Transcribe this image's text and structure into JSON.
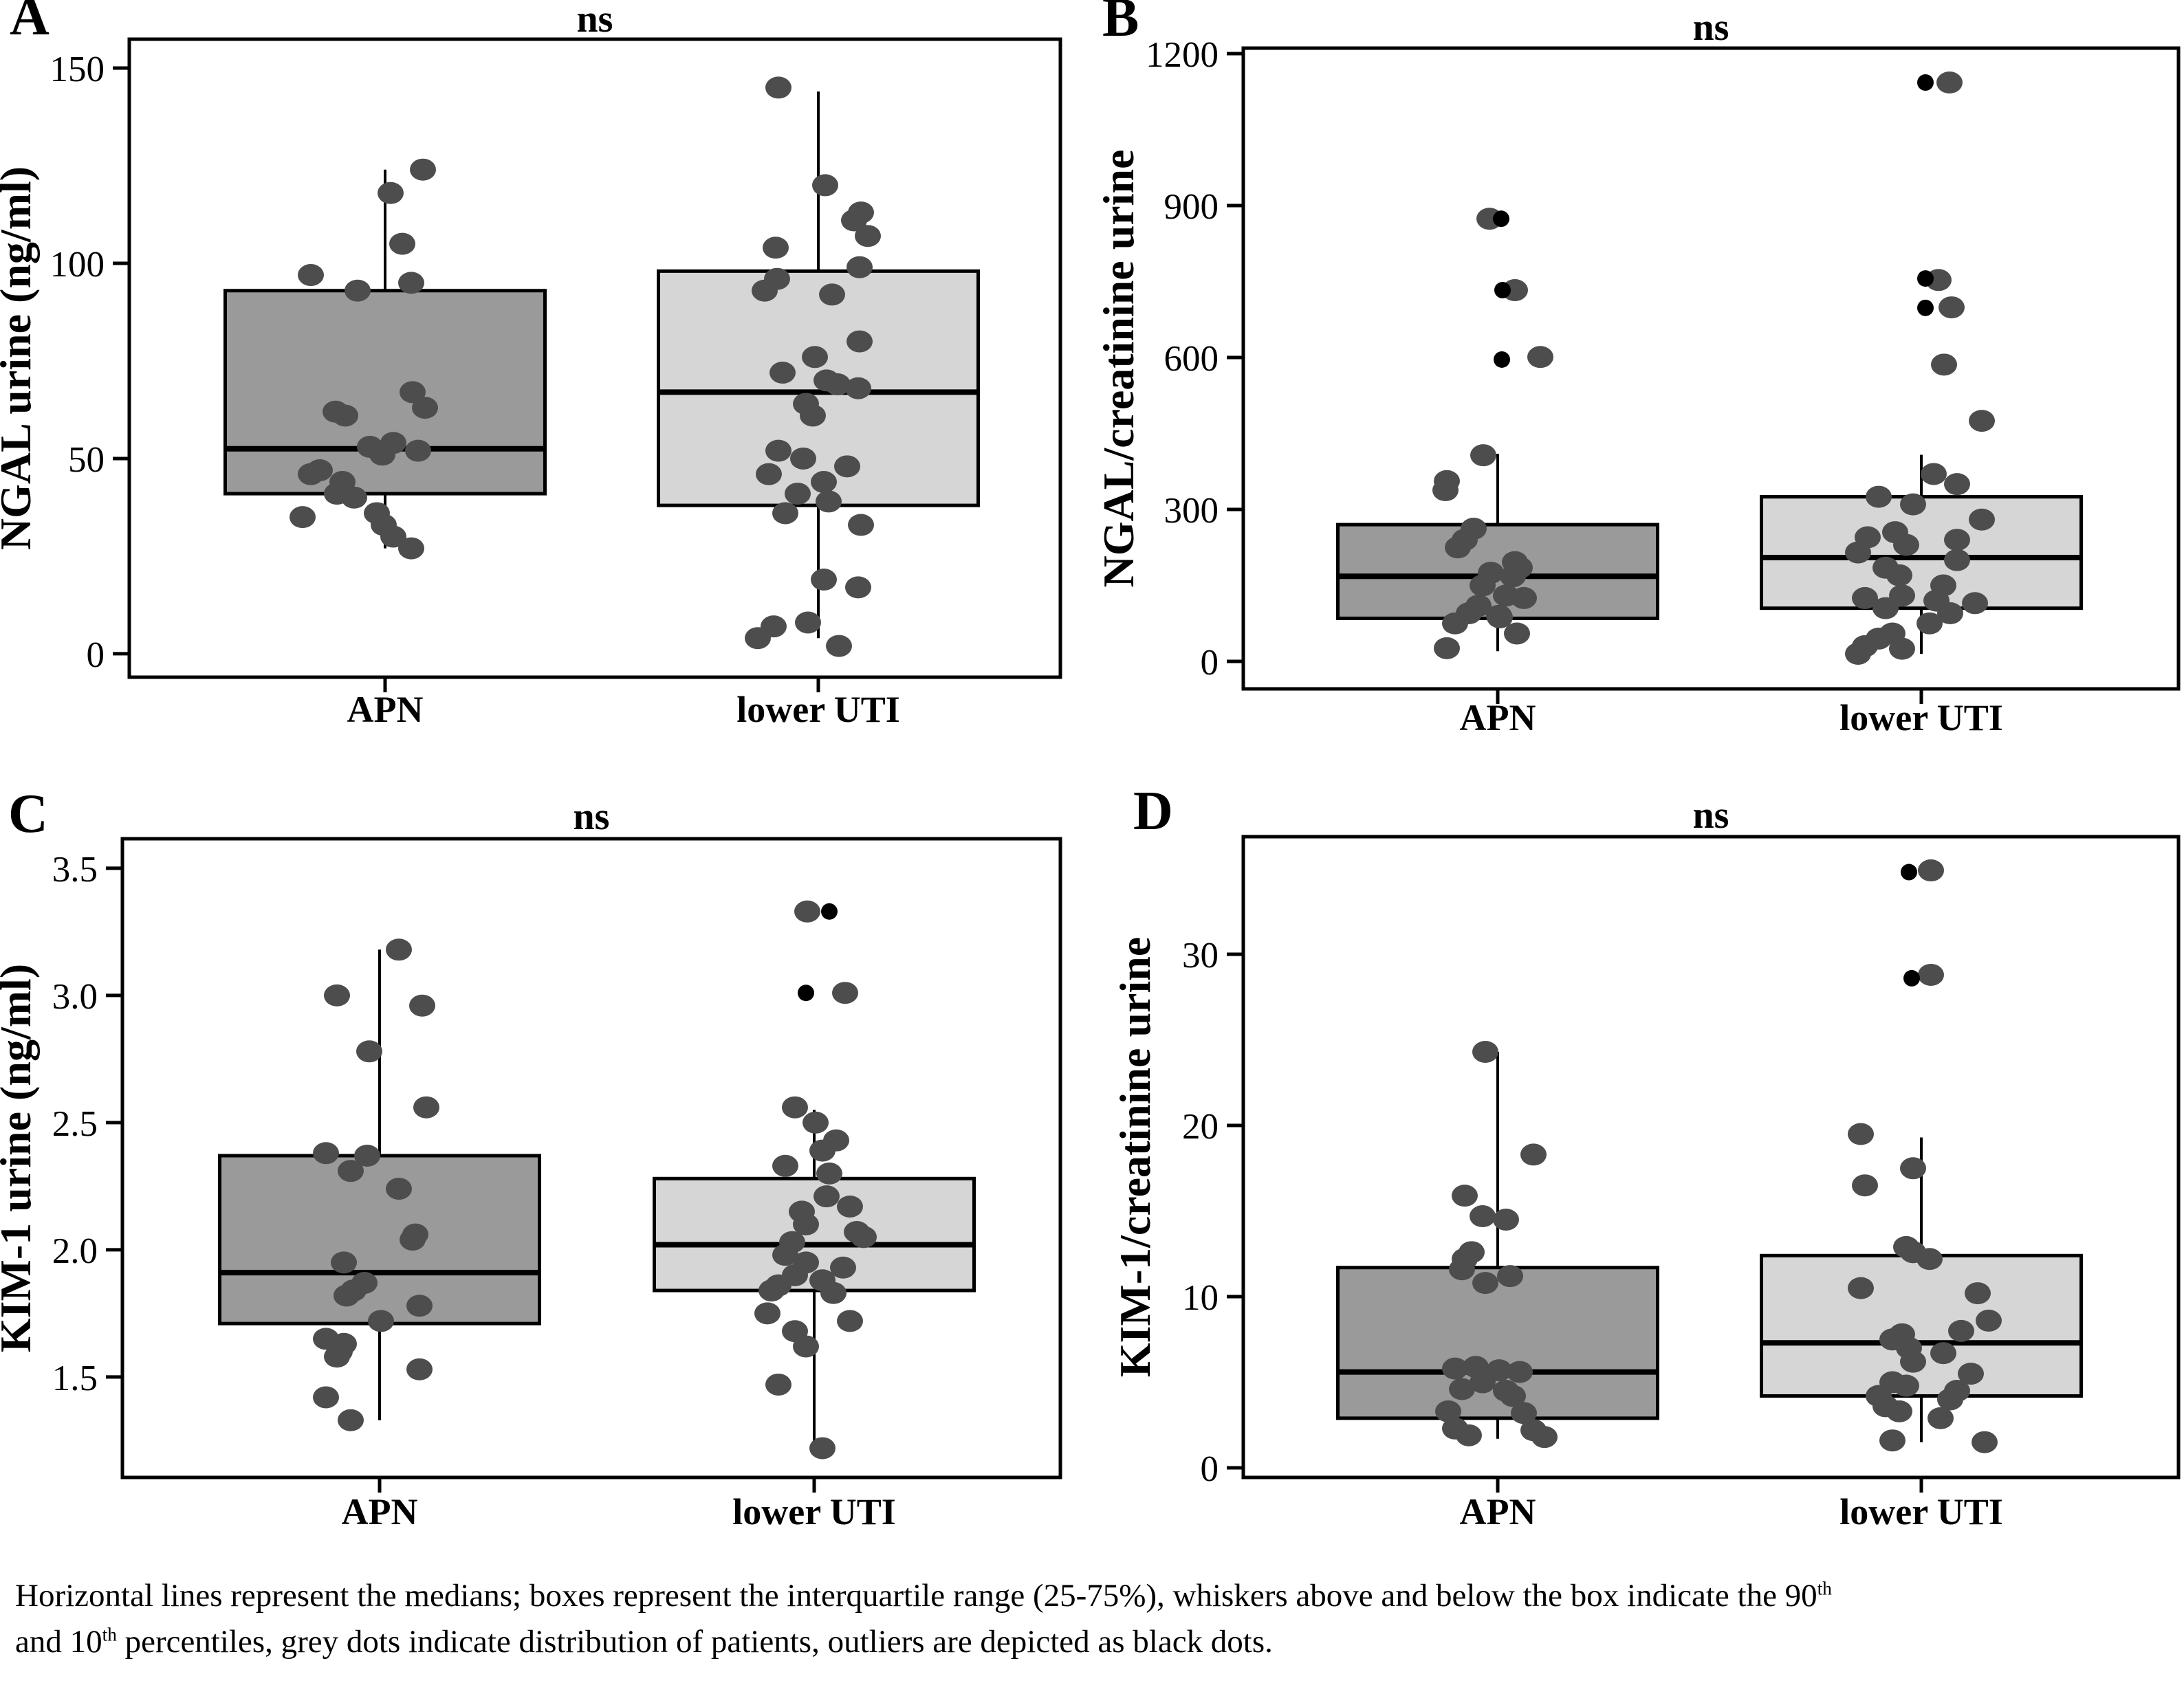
{
  "figure": {
    "background": "#ffffff"
  },
  "style": {
    "dot_color": "#4d4d4d",
    "outlier_color": "#000000",
    "line_color": "#000000",
    "apn_fill": "#9a9a9a",
    "uti_fill": "#d6d6d6"
  },
  "caption": {
    "line1_text": "Horizontal lines represent the medians; boxes represent the interquartile range (25-75%), whiskers above and below the box indicate the 90",
    "line1_sup": "th",
    "line2_a": "and 10",
    "line2_sup": "th",
    "line2_b": " percentiles, grey dots indicate distribution of patients, outliers are depicted as black dots."
  },
  "chart_data": [
    {
      "type": "box",
      "letter": "A",
      "title": "ns",
      "ylabel": "NGAL urine (ng/ml)",
      "categories": [
        "APN",
        "lower UTI"
      ],
      "ylim": [
        -6.0,
        157.4
      ],
      "yticks": [
        0,
        50,
        100,
        150
      ],
      "ytick_labels": [
        "0",
        "50",
        "100",
        "150"
      ],
      "grid": false,
      "groups": [
        {
          "name": "APN",
          "fill": "#9a9a9a",
          "box": {
            "q1": 41,
            "median": 52.5,
            "q3": 93,
            "whisker_low": 27,
            "whisker_high": 124
          },
          "points": [
            [
              124,
              55
            ],
            [
              118,
              8
            ],
            [
              105,
              25
            ],
            [
              97,
              -108
            ],
            [
              95,
              38
            ],
            [
              93,
              -40
            ],
            [
              67,
              40
            ],
            [
              63,
              58
            ],
            [
              62,
              -72
            ],
            [
              61,
              -58
            ],
            [
              54,
              12
            ],
            [
              53,
              -22
            ],
            [
              52,
              48
            ],
            [
              51,
              -4
            ],
            [
              47,
              -95
            ],
            [
              46,
              -108
            ],
            [
              44,
              -62
            ],
            [
              41,
              -70
            ],
            [
              40,
              -45
            ],
            [
              36,
              -12
            ],
            [
              35,
              -120
            ],
            [
              33,
              -2
            ],
            [
              30,
              12
            ],
            [
              27,
              38
            ]
          ],
          "outliers": []
        },
        {
          "name": "lower UTI",
          "fill": "#d6d6d6",
          "box": {
            "q1": 38,
            "median": 67,
            "q3": 98,
            "whisker_low": 4,
            "whisker_high": 144
          },
          "points": [
            [
              145,
              -58
            ],
            [
              120,
              10
            ],
            [
              113,
              62
            ],
            [
              111,
              52
            ],
            [
              107,
              72
            ],
            [
              104,
              -62
            ],
            [
              99,
              60
            ],
            [
              96,
              -60
            ],
            [
              93,
              -78
            ],
            [
              92,
              20
            ],
            [
              80,
              60
            ],
            [
              76,
              -5
            ],
            [
              72,
              -52
            ],
            [
              70,
              12
            ],
            [
              69,
              28
            ],
            [
              68,
              58
            ],
            [
              64,
              -18
            ],
            [
              61,
              -8
            ],
            [
              52,
              -58
            ],
            [
              50,
              -22
            ],
            [
              48,
              42
            ],
            [
              46,
              -72
            ],
            [
              44,
              8
            ],
            [
              41,
              -30
            ],
            [
              39,
              15
            ],
            [
              36,
              -48
            ],
            [
              33,
              62
            ],
            [
              19,
              8
            ],
            [
              17,
              58
            ],
            [
              8,
              -15
            ],
            [
              7,
              -65
            ],
            [
              4,
              -88
            ],
            [
              2,
              30
            ]
          ],
          "outliers": []
        }
      ]
    },
    {
      "type": "box",
      "letter": "B",
      "title": "ns",
      "ylabel": "NGAL/creatinine urine",
      "categories": [
        "APN",
        "lower UTI"
      ],
      "ylim": [
        -54.3,
        1210.9
      ],
      "yticks": [
        0,
        300,
        600,
        900,
        1200
      ],
      "ytick_labels": [
        "0",
        "300",
        "600",
        "900",
        "1200"
      ],
      "grid": false,
      "groups": [
        {
          "name": "APN",
          "fill": "#9a9a9a",
          "box": {
            "q1": 85,
            "median": 168,
            "q3": 270,
            "whisker_low": 20,
            "whisker_high": 410
          },
          "points": [
            [
              874,
              -12
            ],
            [
              733,
              25
            ],
            [
              601,
              62
            ],
            [
              407,
              -21
            ],
            [
              356,
              -74
            ],
            [
              338,
              -76
            ],
            [
              262,
              -35
            ],
            [
              240,
              -48
            ],
            [
              225,
              -58
            ],
            [
              196,
              25
            ],
            [
              185,
              32
            ],
            [
              175,
              -10
            ],
            [
              168,
              22
            ],
            [
              150,
              -22
            ],
            [
              130,
              12
            ],
            [
              125,
              38
            ],
            [
              110,
              -28
            ],
            [
              95,
              -42
            ],
            [
              90,
              2
            ],
            [
              87,
              3
            ],
            [
              75,
              -62
            ],
            [
              55,
              28
            ],
            [
              26,
              -74
            ]
          ],
          "outliers": [
            [
              874,
              5
            ],
            [
              733,
              7
            ],
            [
              596,
              6
            ]
          ]
        },
        {
          "name": "lower UTI",
          "fill": "#d6d6d6",
          "box": {
            "q1": 105,
            "median": 205,
            "q3": 325,
            "whisker_low": 15,
            "whisker_high": 408
          },
          "points": [
            [
              1143,
              41
            ],
            [
              753,
              25
            ],
            [
              699,
              44
            ],
            [
              586,
              33
            ],
            [
              475,
              88
            ],
            [
              370,
              18
            ],
            [
              350,
              52
            ],
            [
              325,
              -62
            ],
            [
              310,
              -12
            ],
            [
              280,
              88
            ],
            [
              255,
              -38
            ],
            [
              245,
              -78
            ],
            [
              240,
              52
            ],
            [
              230,
              -22
            ],
            [
              215,
              -92
            ],
            [
              200,
              52
            ],
            [
              185,
              -52
            ],
            [
              170,
              -32
            ],
            [
              150,
              32
            ],
            [
              130,
              -28
            ],
            [
              125,
              -82
            ],
            [
              120,
              22
            ],
            [
              115,
              78
            ],
            [
              105,
              -52
            ],
            [
              95,
              42
            ],
            [
              75,
              12
            ],
            [
              55,
              -42
            ],
            [
              45,
              -62
            ],
            [
              30,
              -82
            ],
            [
              25,
              -28
            ],
            [
              15,
              -92
            ]
          ],
          "outliers": [
            [
              1143,
              6
            ],
            [
              756,
              6
            ],
            [
              698,
              6
            ]
          ]
        }
      ]
    },
    {
      "type": "box",
      "letter": "C",
      "title": "ns",
      "ylabel": "KIM-1 urine (ng/ml)",
      "categories": [
        "APN",
        "lower UTI"
      ],
      "ylim": [
        1.105,
        3.616
      ],
      "yticks": [
        1.5,
        2.0,
        2.5,
        3.0,
        3.5
      ],
      "ytick_labels": [
        "1.5",
        "2.0",
        "2.5",
        "3.0",
        "3.5"
      ],
      "grid": false,
      "groups": [
        {
          "name": "APN",
          "fill": "#9a9a9a",
          "box": {
            "q1": 1.71,
            "median": 1.91,
            "q3": 2.37,
            "whisker_low": 1.33,
            "whisker_high": 3.18
          },
          "points": [
            [
              3.18,
              28
            ],
            [
              3.0,
              -62
            ],
            [
              2.96,
              62
            ],
            [
              2.78,
              -15
            ],
            [
              2.56,
              68
            ],
            [
              2.38,
              -78
            ],
            [
              2.37,
              -18
            ],
            [
              2.31,
              -42
            ],
            [
              2.24,
              28
            ],
            [
              2.06,
              52
            ],
            [
              2.04,
              48
            ],
            [
              1.95,
              -52
            ],
            [
              1.87,
              -22
            ],
            [
              1.84,
              -38
            ],
            [
              1.82,
              -48
            ],
            [
              1.78,
              58
            ],
            [
              1.72,
              2
            ],
            [
              1.65,
              -78
            ],
            [
              1.63,
              -52
            ],
            [
              1.6,
              -58
            ],
            [
              1.58,
              -62
            ],
            [
              1.53,
              58
            ],
            [
              1.42,
              -78
            ],
            [
              1.33,
              -42
            ]
          ],
          "outliers": []
        },
        {
          "name": "lower UTI",
          "fill": "#d6d6d6",
          "box": {
            "q1": 1.84,
            "median": 2.02,
            "q3": 2.28,
            "whisker_low": 1.22,
            "whisker_high": 2.55
          },
          "points": [
            [
              3.33,
              -10
            ],
            [
              3.01,
              45
            ],
            [
              2.56,
              -28
            ],
            [
              2.5,
              2
            ],
            [
              2.43,
              32
            ],
            [
              2.39,
              12
            ],
            [
              2.33,
              -42
            ],
            [
              2.3,
              22
            ],
            [
              2.21,
              18
            ],
            [
              2.17,
              52
            ],
            [
              2.15,
              -18
            ],
            [
              2.1,
              -12
            ],
            [
              2.07,
              62
            ],
            [
              2.05,
              72
            ],
            [
              2.03,
              -32
            ],
            [
              1.98,
              -42
            ],
            [
              1.95,
              -12
            ],
            [
              1.93,
              42
            ],
            [
              1.9,
              -28
            ],
            [
              1.88,
              12
            ],
            [
              1.86,
              -52
            ],
            [
              1.84,
              -62
            ],
            [
              1.83,
              28
            ],
            [
              1.75,
              -68
            ],
            [
              1.72,
              52
            ],
            [
              1.68,
              -28
            ],
            [
              1.62,
              -12
            ],
            [
              1.47,
              -52
            ],
            [
              1.22,
              12
            ]
          ],
          "outliers": [
            [
              3.33,
              22
            ],
            [
              3.01,
              -12
            ]
          ]
        }
      ]
    },
    {
      "type": "box",
      "letter": "D",
      "title": "ns",
      "ylabel": "KIM-1/creatinine urine",
      "categories": [
        "APN",
        "lower UTI"
      ],
      "ylim": [
        -0.56,
        36.87
      ],
      "yticks": [
        0,
        10,
        20,
        30
      ],
      "ytick_labels": [
        "0",
        "10",
        "20",
        "30"
      ],
      "grid": false,
      "groups": [
        {
          "name": "APN",
          "fill": "#9a9a9a",
          "box": {
            "q1": 2.9,
            "median": 5.6,
            "q3": 11.7,
            "whisker_low": 1.7,
            "whisker_high": 24.3
          },
          "points": [
            [
              24.3,
              -18
            ],
            [
              18.3,
              52
            ],
            [
              15.9,
              -48
            ],
            [
              14.7,
              -22
            ],
            [
              14.5,
              12
            ],
            [
              12.6,
              -38
            ],
            [
              12.2,
              -48
            ],
            [
              11.6,
              -52
            ],
            [
              11.2,
              18
            ],
            [
              10.8,
              -18
            ],
            [
              5.9,
              -32
            ],
            [
              5.8,
              -62
            ],
            [
              5.7,
              2
            ],
            [
              5.6,
              32
            ],
            [
              5.0,
              -22
            ],
            [
              4.6,
              -52
            ],
            [
              4.5,
              12
            ],
            [
              4.2,
              22
            ],
            [
              3.3,
              -72
            ],
            [
              3.2,
              38
            ],
            [
              2.3,
              -62
            ],
            [
              2.2,
              52
            ],
            [
              1.9,
              -42
            ],
            [
              1.8,
              68
            ]
          ],
          "outliers": []
        },
        {
          "name": "lower UTI",
          "fill": "#d6d6d6",
          "box": {
            "q1": 4.2,
            "median": 7.3,
            "q3": 12.4,
            "whisker_low": 1.5,
            "whisker_high": 19.3
          },
          "points": [
            [
              34.9,
              14
            ],
            [
              28.8,
              14
            ],
            [
              19.5,
              -88
            ],
            [
              17.5,
              -12
            ],
            [
              16.5,
              -82
            ],
            [
              12.9,
              -22
            ],
            [
              12.6,
              -12
            ],
            [
              12.2,
              12
            ],
            [
              10.5,
              -88
            ],
            [
              10.2,
              82
            ],
            [
              8.6,
              98
            ],
            [
              8.0,
              58
            ],
            [
              7.8,
              -28
            ],
            [
              7.5,
              -42
            ],
            [
              7.0,
              -18
            ],
            [
              6.7,
              32
            ],
            [
              6.2,
              -12
            ],
            [
              5.5,
              72
            ],
            [
              5.0,
              -42
            ],
            [
              4.8,
              -22
            ],
            [
              4.5,
              52
            ],
            [
              4.2,
              -62
            ],
            [
              4.0,
              42
            ],
            [
              3.6,
              -52
            ],
            [
              3.3,
              -32
            ],
            [
              2.9,
              28
            ],
            [
              1.6,
              -42
            ],
            [
              1.5,
              92
            ]
          ],
          "outliers": [
            [
              34.8,
              -18
            ],
            [
              28.6,
              -14
            ]
          ]
        }
      ]
    }
  ]
}
